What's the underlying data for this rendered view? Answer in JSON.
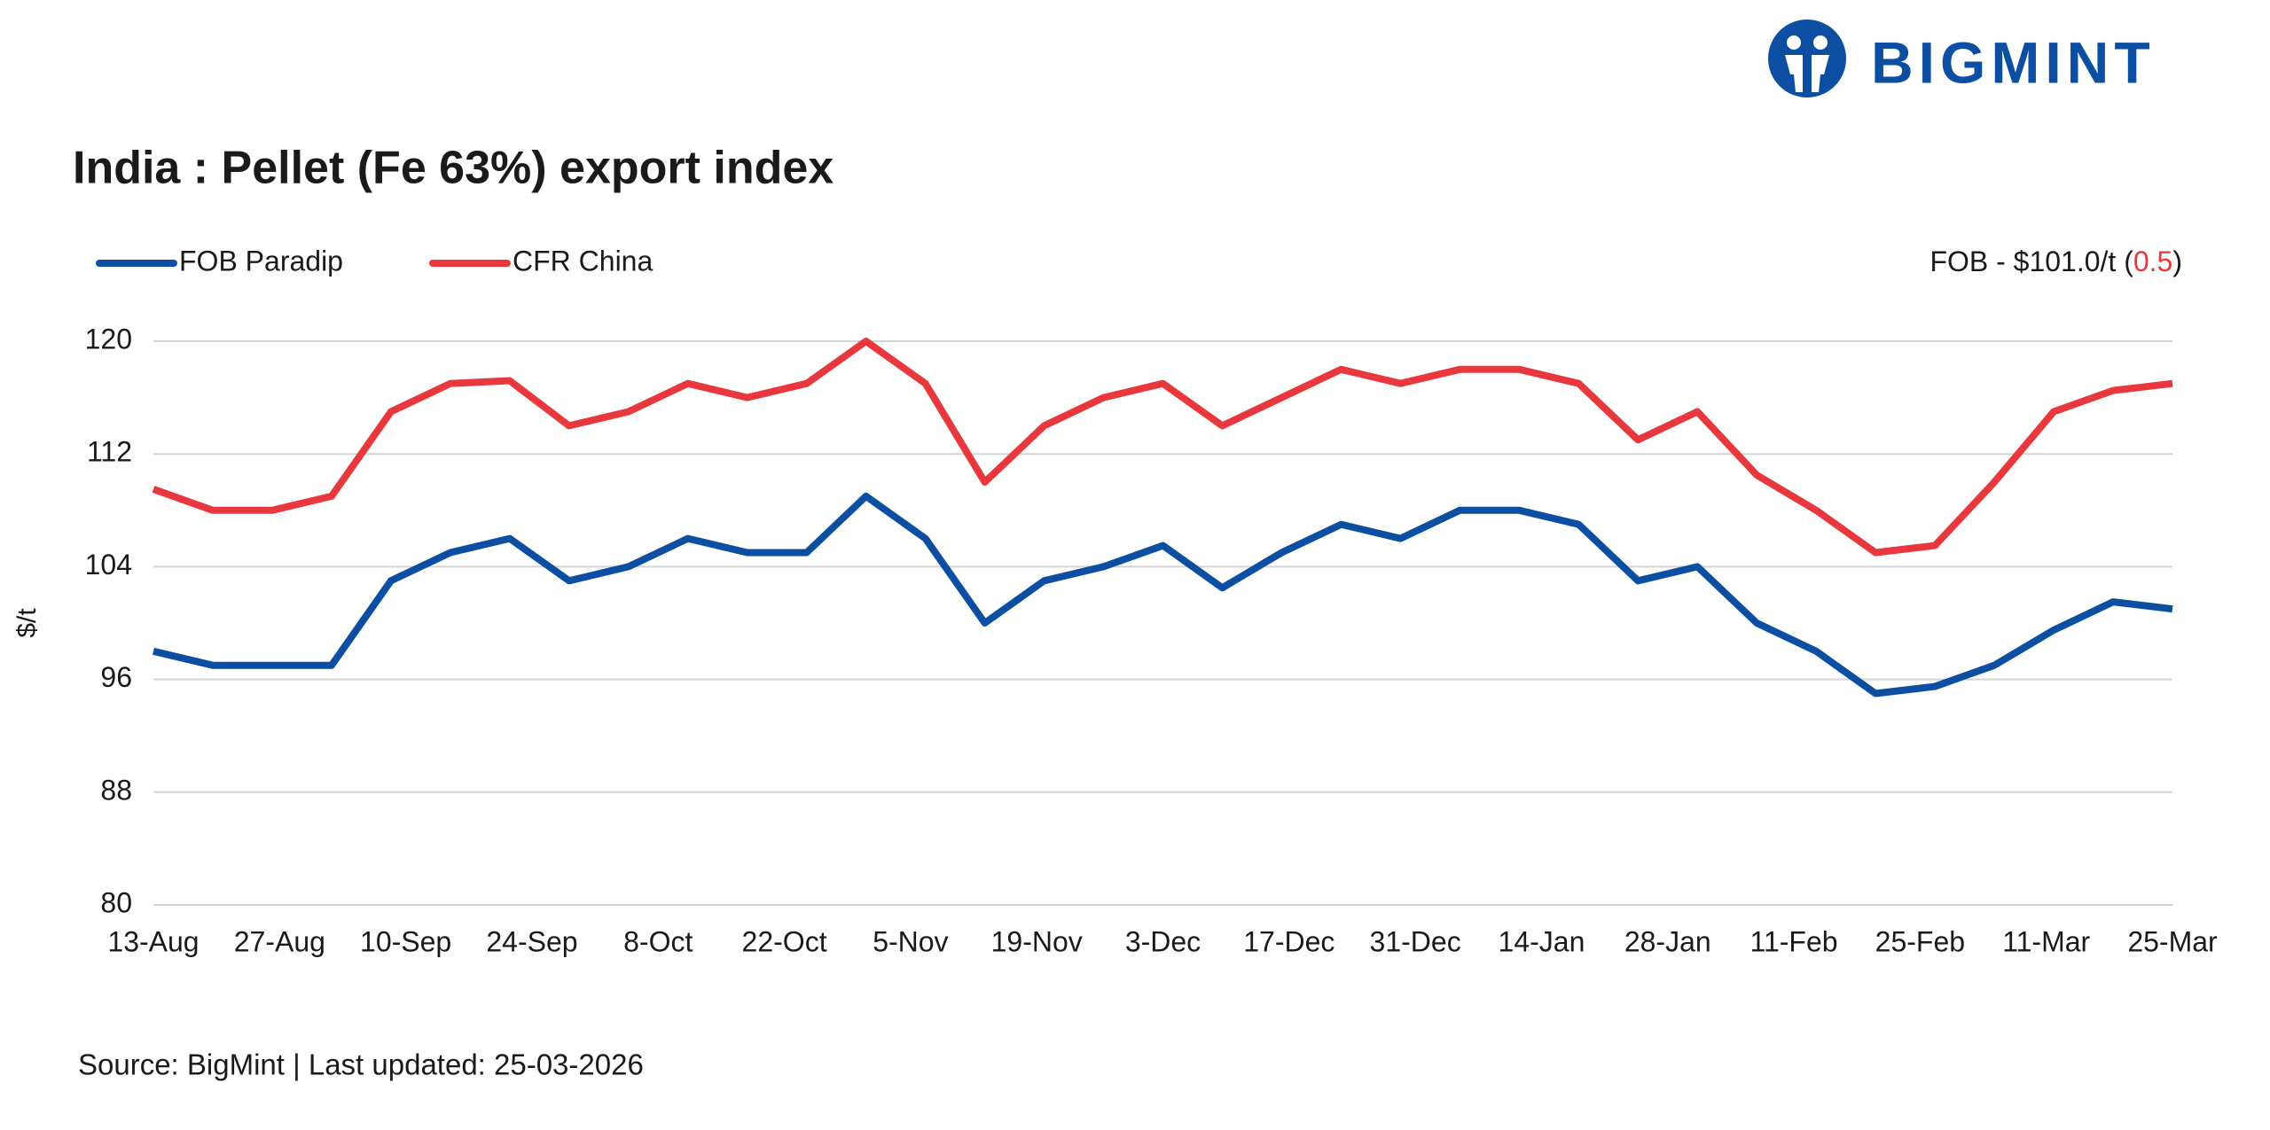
{
  "logo": "BIGMINT",
  "chart_data": {
    "type": "line",
    "title": "India : Pellet (Fe 63%) export index",
    "y_label": "$/t",
    "annotation_prefix": "FOB - $101.0/t (",
    "annotation_change": "0.5",
    "annotation_suffix": ")",
    "source": "Source: BigMint | Last updated: 25-03-2026",
    "x_labels": [
      "13-Aug",
      "27-Aug",
      "10-Sep",
      "24-Sep",
      "8-Oct",
      "22-Oct",
      "5-Nov",
      "19-Nov",
      "3-Dec",
      "17-Dec",
      "31-Dec",
      "14-Jan",
      "28-Jan",
      "11-Feb",
      "25-Feb",
      "11-Mar",
      "25-Mar"
    ],
    "ylim": [
      80,
      120
    ],
    "yticks": [
      80,
      88,
      96,
      104,
      112,
      120
    ],
    "grid": true,
    "series": [
      {
        "name": "FOB Paradip",
        "color": "#0b4ea2",
        "values": [
          98,
          97,
          97,
          97,
          103,
          105,
          106,
          103,
          104,
          106,
          105,
          105,
          109,
          106,
          100,
          103,
          104,
          105.5,
          102.5,
          105,
          107,
          106,
          108,
          108,
          107,
          103,
          104,
          100,
          98,
          95,
          95.5,
          97,
          99.5,
          101.5,
          101
        ]
      },
      {
        "name": "CFR China",
        "color": "#e8383d",
        "values": [
          109.5,
          108,
          108,
          109,
          115,
          117,
          117.2,
          114,
          115,
          117,
          116,
          117,
          120,
          117,
          110,
          114,
          116,
          117,
          114,
          116,
          118,
          117,
          118,
          118,
          117,
          113,
          115,
          110.5,
          108,
          105,
          105.5,
          110,
          115,
          116.5,
          117
        ]
      }
    ]
  }
}
